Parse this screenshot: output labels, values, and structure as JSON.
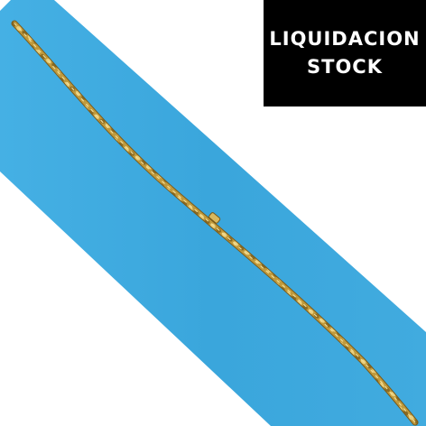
{
  "badge": {
    "line1": "LIQUIDACION",
    "line2": "STOCK",
    "background_color": "#000000",
    "text_color": "#ffffff"
  },
  "photo": {
    "subject": "gold-chain-icon",
    "ribbon_color": "#3fa9de",
    "chain_color": "#c9a84a"
  }
}
